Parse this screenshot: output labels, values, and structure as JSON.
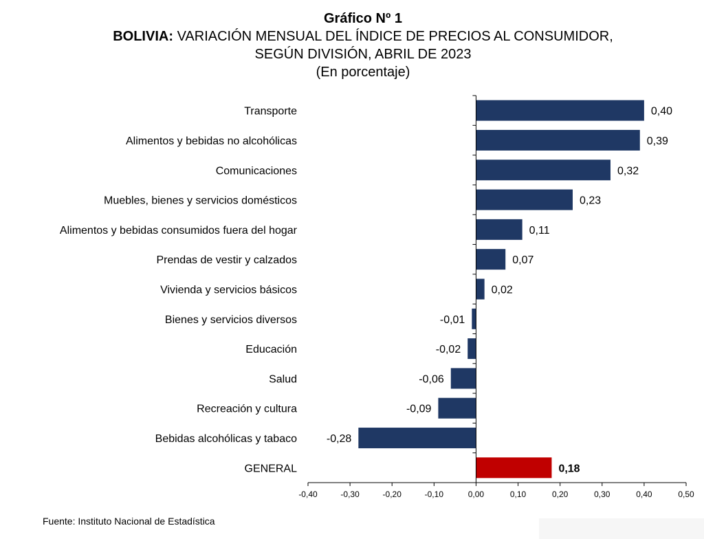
{
  "header": {
    "title": "Gráfico Nº 1",
    "subtitle_bold": "BOLIVIA:",
    "subtitle_line1": "VARIACIÓN MENSUAL DEL ÍNDICE DE PRECIOS AL CONSUMIDOR,",
    "subtitle_line2": "SEGÚN DIVISIÓN, ABRIL DE 2023",
    "unit": "(En porcentaje)"
  },
  "source": "Fuente: Instituto Nacional de Estadística",
  "colors": {
    "bar": "#1f3864",
    "general": "#c00000",
    "axis": "#000000"
  },
  "chart_data": {
    "type": "bar",
    "orientation": "horizontal",
    "title": "Gráfico Nº 1",
    "categories": [
      "Transporte",
      "Alimentos y bebidas no alcohólicas",
      "Comunicaciones",
      "Muebles, bienes y servicios domésticos",
      "Alimentos y bebidas consumidos fuera del hogar",
      "Prendas de vestir y calzados",
      "Vivienda y servicios básicos",
      "Bienes y servicios diversos",
      "Educación",
      "Salud",
      "Recreación y cultura",
      "Bebidas alcohólicas y tabaco",
      "GENERAL"
    ],
    "values": [
      0.4,
      0.39,
      0.32,
      0.23,
      0.11,
      0.07,
      0.02,
      -0.01,
      -0.02,
      -0.06,
      -0.09,
      -0.28,
      0.18
    ],
    "value_labels": [
      "0,40",
      "0,39",
      "0,32",
      "0,23",
      "0,11",
      "0,07",
      "0,02",
      "-0,01",
      "-0,02",
      "-0,06",
      "-0,09",
      "-0,28",
      "0,18"
    ],
    "xlim": [
      -0.4,
      0.5
    ],
    "xticks": [
      -0.4,
      -0.3,
      -0.2,
      -0.1,
      0.0,
      0.1,
      0.2,
      0.3,
      0.4,
      0.5
    ],
    "xtick_labels": [
      "-0,40",
      "-0,30",
      "-0,20",
      "-0,10",
      "0,00",
      "0,10",
      "0,20",
      "0,30",
      "0,40",
      "0,50"
    ],
    "highlight_category": "GENERAL",
    "grid": false,
    "legend": "none"
  }
}
